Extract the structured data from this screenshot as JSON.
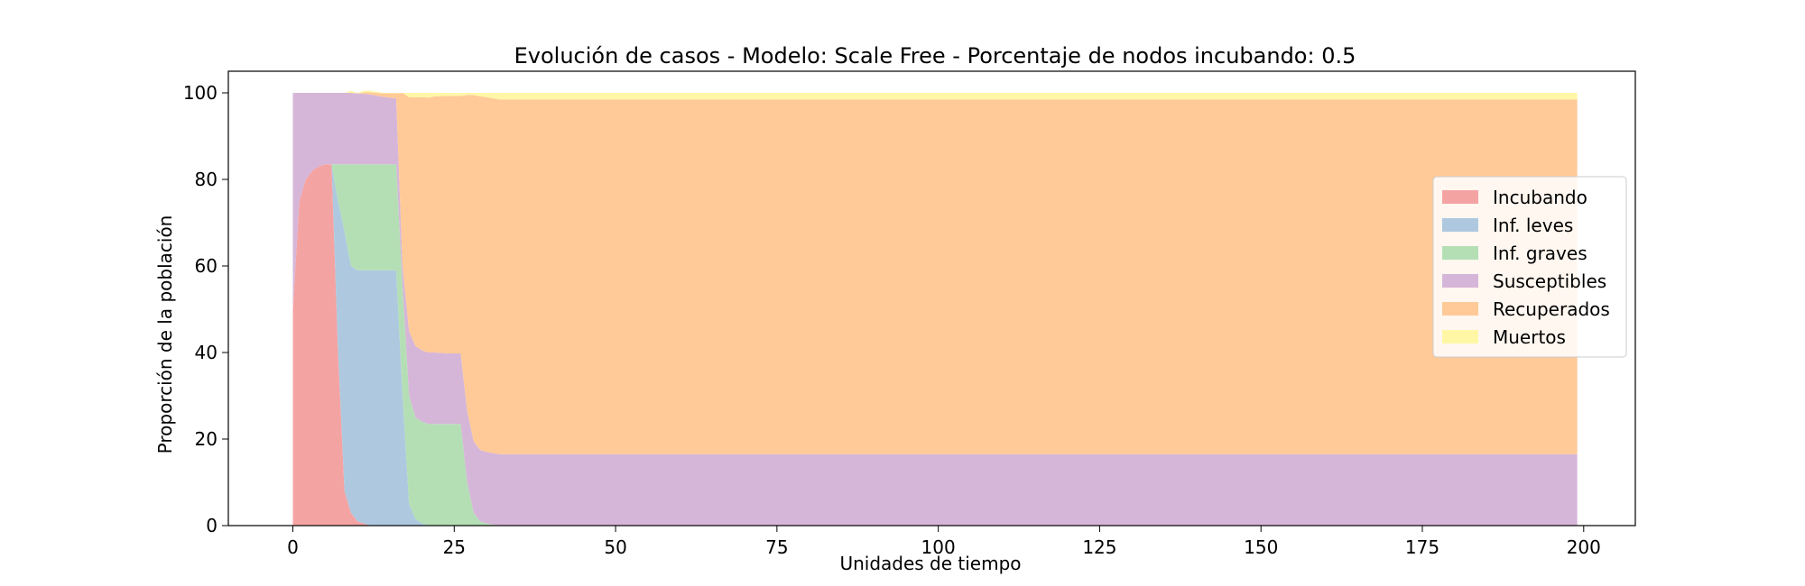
{
  "chart_data": {
    "type": "area",
    "stacked": true,
    "title": "Evolución de casos - Modelo: Scale Free - Porcentaje de nodos incubando: 0.5",
    "xlabel": "Unidades de tiempo",
    "ylabel": "Proporción de la población",
    "xlim": [
      -10,
      208
    ],
    "ylim": [
      0,
      105
    ],
    "xticks": [
      0,
      25,
      50,
      75,
      100,
      125,
      150,
      175,
      200
    ],
    "yticks": [
      0,
      20,
      40,
      60,
      80,
      100
    ],
    "grid": false,
    "legend_position": "center-right",
    "x": [
      0,
      1,
      2,
      3,
      4,
      5,
      6,
      7,
      8,
      9,
      10,
      11,
      12,
      14,
      16,
      17,
      18,
      19,
      20,
      21,
      22,
      24,
      26,
      27,
      28,
      29,
      30,
      32,
      35,
      40,
      50,
      199
    ],
    "series": [
      {
        "name": "Incubando",
        "color": "#f4a3a3",
        "values": [
          50,
          75,
          80,
          82,
          83,
          83.5,
          83.5,
          40,
          8,
          3,
          1,
          0.5,
          0,
          0,
          0,
          0,
          0,
          0,
          0,
          0,
          0,
          0,
          0,
          0,
          0,
          0,
          0,
          0,
          0,
          0,
          0,
          0
        ]
      },
      {
        "name": "Inf. leves",
        "color": "#aec9df",
        "values": [
          0,
          0,
          0,
          0,
          0,
          0,
          0,
          35,
          60,
          57,
          58,
          58.5,
          59,
          59,
          59,
          30,
          5,
          1.5,
          0.5,
          0,
          0,
          0,
          0,
          0,
          0,
          0,
          0,
          0,
          0,
          0,
          0,
          0
        ]
      },
      {
        "name": "Inf. graves",
        "color": "#b4dfb5",
        "values": [
          0,
          0,
          0,
          0,
          0,
          0,
          0,
          8.5,
          15.5,
          23.5,
          24.5,
          24.5,
          24.5,
          24.5,
          24.5,
          25,
          25,
          23.5,
          23.5,
          23.5,
          23.5,
          23.5,
          23.5,
          10,
          3,
          1,
          0.5,
          0,
          0,
          0,
          0,
          0
        ]
      },
      {
        "name": "Susceptibles",
        "color": "#d6b6d8",
        "values": [
          50,
          25,
          20,
          18,
          17,
          16.5,
          16.5,
          16.5,
          16.5,
          16.5,
          16.4,
          16.3,
          16.1,
          15.6,
          15.2,
          5,
          15,
          16.5,
          16.5,
          16.5,
          16.5,
          16.3,
          16.3,
          16.5,
          16.5,
          16.5,
          16.5,
          16.5,
          16.5,
          16.5,
          16.5,
          16.5
        ]
      },
      {
        "name": "Recuperados",
        "color": "#ffca98",
        "values": [
          0,
          0,
          0,
          0,
          0,
          0,
          0,
          0,
          0,
          0,
          0,
          0.3,
          0.5,
          0.8,
          1.2,
          40,
          54,
          57.5,
          58.5,
          58.9,
          59.2,
          59.5,
          59.5,
          73,
          80,
          81.7,
          82,
          82,
          82,
          82,
          82,
          82
        ]
      },
      {
        "name": "Muertos",
        "color": "#fff7a6",
        "values": [
          0,
          0,
          0,
          0,
          0,
          0,
          0,
          0,
          0,
          0.5,
          0.1,
          0.4,
          0.4,
          0.1,
          0.1,
          0,
          1,
          1,
          1,
          1.1,
          0.8,
          0.7,
          0.7,
          0.5,
          0.5,
          0.8,
          1,
          1.5,
          1.5,
          1.5,
          1.5,
          1.5
        ]
      }
    ]
  }
}
